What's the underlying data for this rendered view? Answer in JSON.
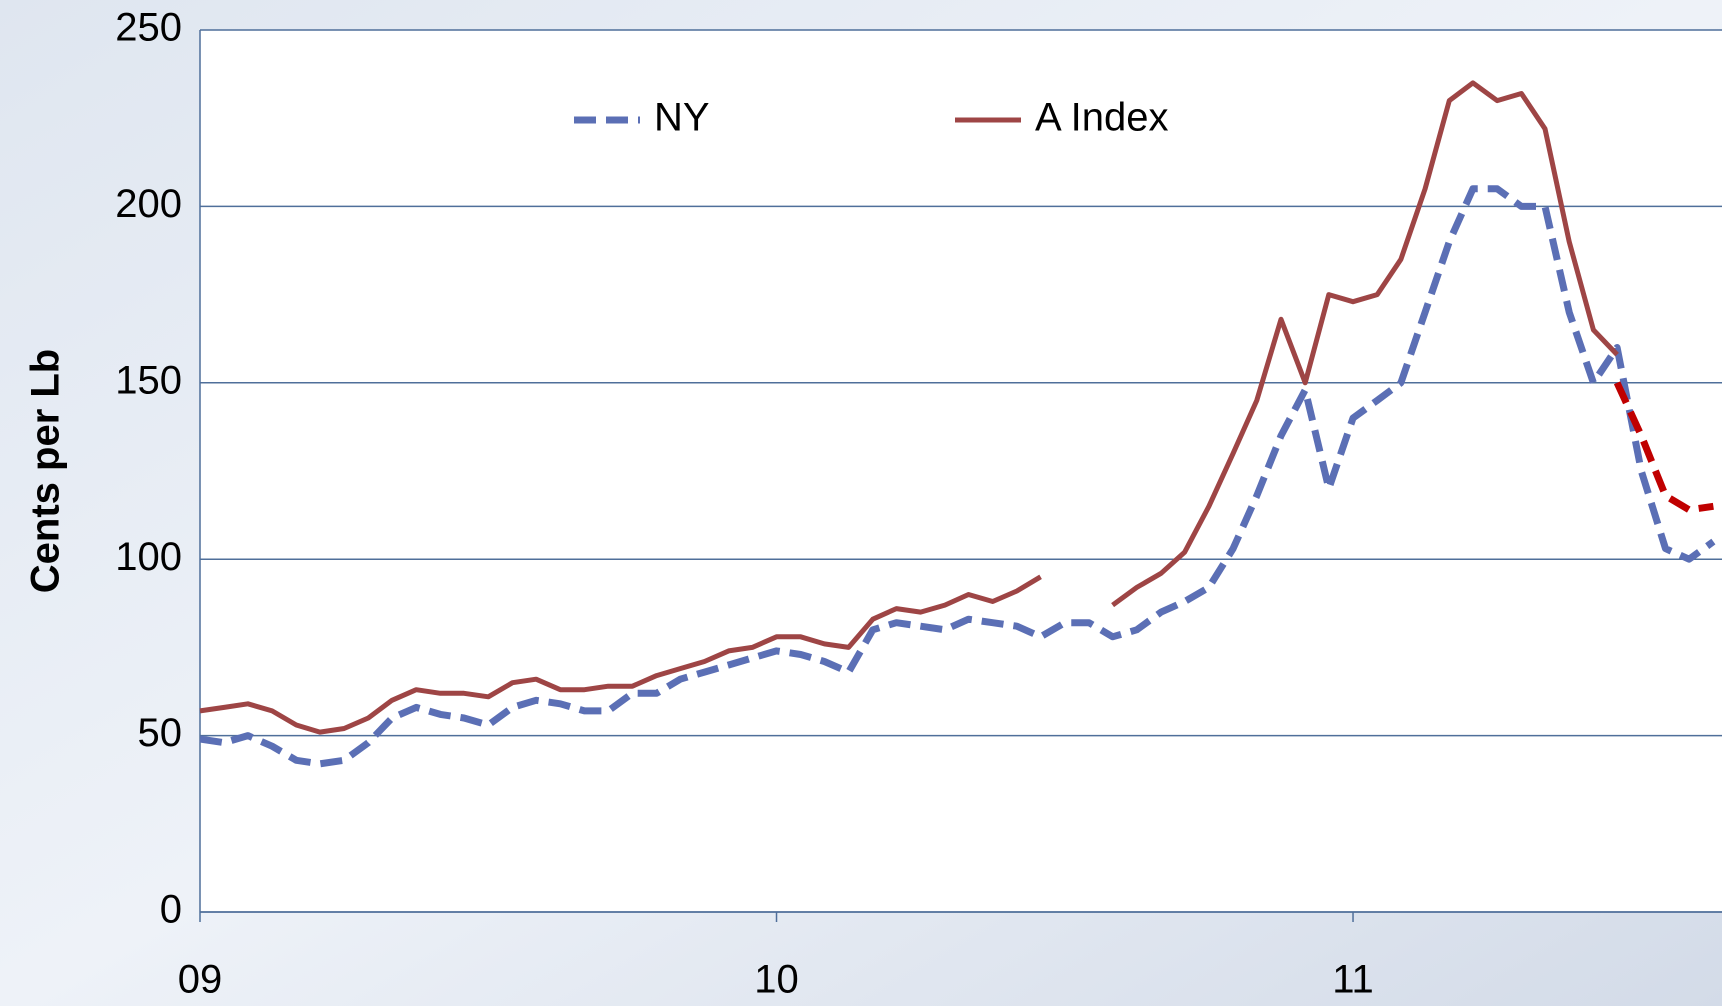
{
  "chart_data": {
    "type": "line",
    "ylabel": "Cents per Lb",
    "x": [
      0,
      0.042,
      0.083,
      0.125,
      0.167,
      0.208,
      0.25,
      0.292,
      0.333,
      0.375,
      0.417,
      0.458,
      0.5,
      0.542,
      0.583,
      0.625,
      0.667,
      0.708,
      0.75,
      0.792,
      0.833,
      0.875,
      0.917,
      0.958,
      1,
      1.042,
      1.083,
      1.125,
      1.167,
      1.208,
      1.25,
      1.292,
      1.333,
      1.375,
      1.417,
      1.458,
      1.5,
      1.542,
      1.583,
      1.625,
      1.667,
      1.708,
      1.75,
      1.792,
      1.833,
      1.875,
      1.917,
      1.958,
      2,
      2.042,
      2.083,
      2.125,
      2.167,
      2.208,
      2.25,
      2.292,
      2.333,
      2.375,
      2.417,
      2.458,
      2.5,
      2.542,
      2.583,
      2.625
    ],
    "series": [
      {
        "name": "NY",
        "color": "#5b6fb5",
        "dashed": true,
        "values": [
          49,
          48,
          50,
          47,
          43,
          42,
          43,
          48,
          55,
          58,
          56,
          55,
          53,
          58,
          60,
          59,
          57,
          57,
          62,
          62,
          66,
          68,
          70,
          72,
          74,
          73,
          71,
          68,
          80,
          82,
          81,
          80,
          83,
          82,
          81,
          78,
          82,
          82,
          78,
          80,
          85,
          88,
          92,
          103,
          118,
          135,
          148,
          120,
          140,
          145,
          150,
          170,
          190,
          205,
          205,
          200,
          200,
          170,
          150,
          160,
          125,
          103,
          100,
          105
        ]
      },
      {
        "name": "A Index",
        "color": "#9e4545",
        "dashed": false,
        "values": [
          57,
          58,
          59,
          57,
          53,
          51,
          52,
          55,
          60,
          63,
          62,
          62,
          61,
          65,
          66,
          63,
          63,
          64,
          64,
          67,
          69,
          71,
          74,
          75,
          78,
          78,
          76,
          75,
          83,
          86,
          85,
          87,
          90,
          88,
          91,
          95,
          null,
          null,
          87,
          92,
          96,
          102,
          115,
          130,
          145,
          168,
          150,
          175,
          173,
          175,
          185,
          205,
          230,
          235,
          230,
          232,
          222,
          190,
          165,
          158,
          null,
          null,
          null,
          null
        ]
      },
      {
        "color": "#c00000",
        "dashed": true,
        "values": [
          null,
          null,
          null,
          null,
          null,
          null,
          null,
          null,
          null,
          null,
          null,
          null,
          null,
          null,
          null,
          null,
          null,
          null,
          null,
          null,
          null,
          null,
          null,
          null,
          null,
          null,
          null,
          null,
          null,
          null,
          null,
          null,
          null,
          null,
          null,
          null,
          null,
          null,
          null,
          null,
          null,
          null,
          null,
          null,
          null,
          null,
          null,
          null,
          null,
          null,
          null,
          null,
          null,
          null,
          null,
          null,
          null,
          null,
          null,
          150,
          135,
          118,
          114,
          115
        ]
      }
    ],
    "xlim": [
      0,
      2.64
    ],
    "xticks": [
      {
        "value": 0,
        "label": "09"
      },
      {
        "value": 1,
        "label": "10"
      },
      {
        "value": 2,
        "label": "11"
      }
    ],
    "ylim": [
      0,
      250
    ],
    "yticks": [
      0,
      50,
      100,
      150,
      200,
      250
    ],
    "grid": true,
    "legend": "top"
  }
}
